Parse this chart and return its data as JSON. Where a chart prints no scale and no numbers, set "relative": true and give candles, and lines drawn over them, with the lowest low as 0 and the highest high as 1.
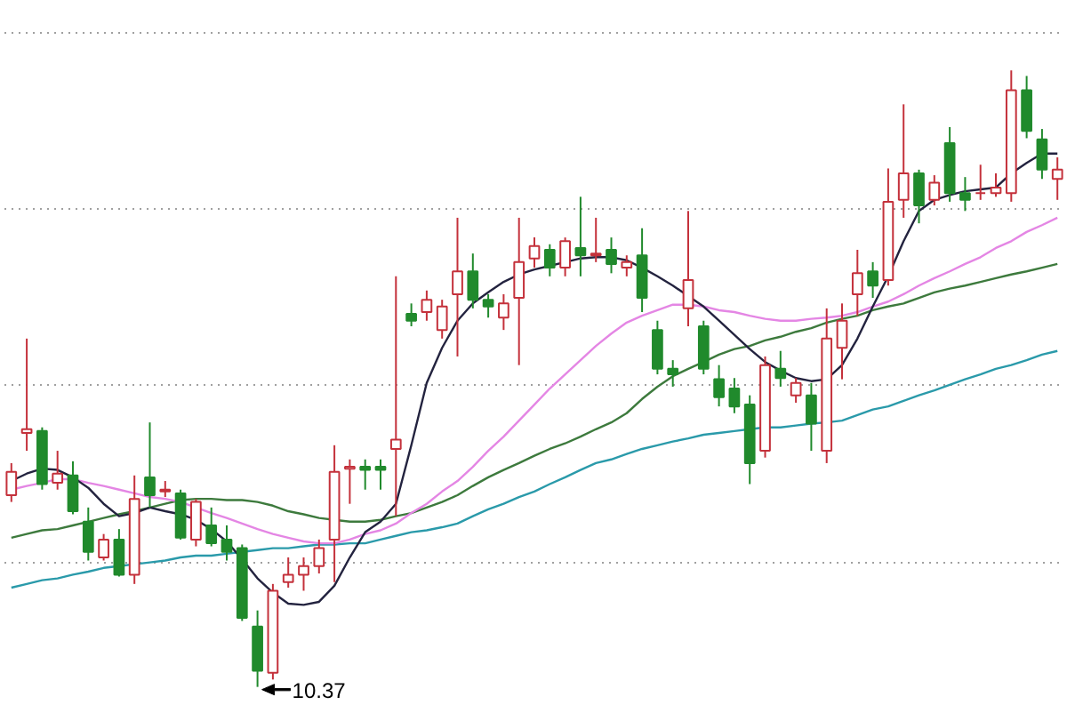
{
  "chart_data": {
    "type": "candlestick",
    "relative": true,
    "categories": [
      null,
      null,
      null,
      null,
      null,
      null,
      null,
      null,
      null,
      null,
      null,
      null,
      null,
      null,
      null,
      null,
      null,
      null,
      null,
      null,
      null,
      null,
      null,
      null,
      null,
      null,
      null,
      null,
      null,
      null,
      null,
      null,
      null,
      null,
      null,
      null,
      null,
      null,
      null,
      null,
      null,
      null,
      null,
      null,
      null,
      null,
      null,
      null,
      null,
      null,
      null,
      null,
      null,
      null,
      null,
      null,
      null,
      null,
      null,
      null,
      null,
      null,
      null,
      null,
      null,
      null,
      null,
      null,
      null
    ],
    "ohlc": [
      [
        0.311,
        0.363,
        0.3,
        0.349
      ],
      [
        0.412,
        0.565,
        0.383,
        0.418
      ],
      [
        0.415,
        0.421,
        0.32,
        0.329
      ],
      [
        0.331,
        0.383,
        0.32,
        0.346
      ],
      [
        0.343,
        0.366,
        0.28,
        0.285
      ],
      [
        0.268,
        0.291,
        0.205,
        0.219
      ],
      [
        0.21,
        0.248,
        0.205,
        0.239
      ],
      [
        0.239,
        0.256,
        0.179,
        0.182
      ],
      [
        0.182,
        0.343,
        0.167,
        0.305
      ],
      [
        0.34,
        0.429,
        0.291,
        0.311
      ],
      [
        0.317,
        0.334,
        0.308,
        0.32
      ],
      [
        0.314,
        0.32,
        0.239,
        0.242
      ],
      [
        0.239,
        0.305,
        0.228,
        0.3
      ],
      [
        0.262,
        0.291,
        0.228,
        0.233
      ],
      [
        0.239,
        0.262,
        0.205,
        0.219
      ],
      [
        0.225,
        0.231,
        0.107,
        0.112
      ],
      [
        0.098,
        0.124,
        0,
        0.026
      ],
      [
        0.023,
        0.167,
        0.012,
        0.156
      ],
      [
        0.17,
        0.21,
        0.161,
        0.182
      ],
      [
        0.182,
        0.21,
        0.156,
        0.196
      ],
      [
        0.196,
        0.239,
        0.184,
        0.225
      ],
      [
        0.239,
        0.392,
        0.17,
        0.349
      ],
      [
        0.354,
        0.369,
        0.297,
        0.357
      ],
      [
        0.357,
        0.369,
        0.32,
        0.352
      ],
      [
        0.357,
        0.369,
        0.32,
        0.352
      ],
      [
        0.386,
        0.666,
        0.277,
        0.401
      ],
      [
        0.605,
        0.622,
        0.585,
        0.594
      ],
      [
        0.608,
        0.643,
        0.594,
        0.628
      ],
      [
        0.579,
        0.628,
        0.565,
        0.617
      ],
      [
        0.637,
        0.761,
        0.536,
        0.674
      ],
      [
        0.674,
        0.703,
        0.614,
        0.628
      ],
      [
        0.628,
        0.637,
        0.599,
        0.617
      ],
      [
        0.599,
        0.637,
        0.579,
        0.622
      ],
      [
        0.631,
        0.761,
        0.522,
        0.689
      ],
      [
        0.695,
        0.729,
        0.68,
        0.715
      ],
      [
        0.709,
        0.718,
        0.666,
        0.68
      ],
      [
        0.68,
        0.729,
        0.666,
        0.723
      ],
      [
        0.712,
        0.795,
        0.666,
        0.7
      ],
      [
        0.7,
        0.761,
        0.689,
        0.703
      ],
      [
        0.709,
        0.729,
        0.671,
        0.686
      ],
      [
        0.68,
        0.7,
        0.666,
        0.689
      ],
      [
        0.7,
        0.744,
        0.608,
        0.631
      ],
      [
        0.579,
        0.594,
        0.507,
        0.516
      ],
      [
        0.516,
        0.53,
        0.487,
        0.507
      ],
      [
        0.614,
        0.772,
        0.585,
        0.66
      ],
      [
        0.585,
        0.594,
        0.507,
        0.516
      ],
      [
        0.499,
        0.522,
        0.455,
        0.47
      ],
      [
        0.484,
        0.501,
        0.444,
        0.455
      ],
      [
        0.458,
        0.473,
        0.329,
        0.363
      ],
      [
        0.383,
        0.536,
        0.372,
        0.522
      ],
      [
        0.516,
        0.545,
        0.487,
        0.501
      ],
      [
        0.473,
        0.501,
        0.461,
        0.493
      ],
      [
        0.473,
        0.493,
        0.383,
        0.427
      ],
      [
        0.383,
        0.614,
        0.363,
        0.565
      ],
      [
        0.55,
        0.622,
        0.499,
        0.594
      ],
      [
        0.637,
        0.709,
        0.602,
        0.671
      ],
      [
        0.674,
        0.689,
        0.631,
        0.651
      ],
      [
        0.66,
        0.841,
        0.651,
        0.787
      ],
      [
        0.79,
        0.945,
        0.761,
        0.833
      ],
      [
        0.833,
        0.839,
        0.752,
        0.781
      ],
      [
        0.79,
        0.83,
        0.781,
        0.818
      ],
      [
        0.882,
        0.908,
        0.787,
        0.801
      ],
      [
        0.801,
        0.827,
        0.772,
        0.79
      ],
      [
        0.801,
        0.847,
        0.79,
        0.801
      ],
      [
        0.801,
        0.833,
        0.795,
        0.81
      ],
      [
        0.801,
        1,
        0.787,
        0.968
      ],
      [
        0.968,
        0.991,
        0.89,
        0.902
      ],
      [
        0.888,
        0.905,
        0.824,
        0.839
      ],
      [
        0.824,
        0.859,
        0.79,
        0.839
      ]
    ],
    "colors": [
      "#c4313b",
      "#c4313b",
      "#208a2c",
      "#c4313b",
      "#208a2c",
      "#208a2c",
      "#c4313b",
      "#208a2c",
      "#c4313b",
      "#208a2c",
      "#c4313b",
      "#208a2c",
      "#c4313b",
      "#208a2c",
      "#208a2c",
      "#208a2c",
      "#208a2c",
      "#c4313b",
      "#c4313b",
      "#c4313b",
      "#c4313b",
      "#c4313b",
      "#c4313b",
      "#208a2c",
      "#208a2c",
      "#c4313b",
      "#208a2c",
      "#c4313b",
      "#c4313b",
      "#c4313b",
      "#208a2c",
      "#208a2c",
      "#c4313b",
      "#c4313b",
      "#c4313b",
      "#208a2c",
      "#c4313b",
      "#208a2c",
      "#c4313b",
      "#208a2c",
      "#c4313b",
      "#208a2c",
      "#208a2c",
      "#208a2c",
      "#c4313b",
      "#208a2c",
      "#208a2c",
      "#208a2c",
      "#208a2c",
      "#c4313b",
      "#208a2c",
      "#c4313b",
      "#208a2c",
      "#c4313b",
      "#c4313b",
      "#c4313b",
      "#208a2c",
      "#c4313b",
      "#c4313b",
      "#208a2c",
      "#c4313b",
      "#208a2c",
      "#208a2c",
      "#c4313b",
      "#c4313b",
      "#c4313b",
      "#208a2c",
      "#208a2c",
      "#c4313b"
    ],
    "series": [
      {
        "type": "line",
        "color": "#2a9aaa",
        "values": [
          0.161,
          0.167,
          0.173,
          0.176,
          0.182,
          0.187,
          0.193,
          0.196,
          0.199,
          0.202,
          0.205,
          0.21,
          0.213,
          0.213,
          0.216,
          0.219,
          0.222,
          0.225,
          0.225,
          0.228,
          0.231,
          0.231,
          0.233,
          0.233,
          0.239,
          0.245,
          0.251,
          0.254,
          0.259,
          0.265,
          0.277,
          0.288,
          0.297,
          0.308,
          0.317,
          0.329,
          0.34,
          0.352,
          0.363,
          0.369,
          0.378,
          0.386,
          0.392,
          0.398,
          0.403,
          0.409,
          0.412,
          0.415,
          0.418,
          0.421,
          0.421,
          0.424,
          0.427,
          0.429,
          0.432,
          0.441,
          0.45,
          0.455,
          0.464,
          0.473,
          0.481,
          0.49,
          0.499,
          0.507,
          0.516,
          0.522,
          0.53,
          0.539,
          0.545
        ]
      },
      {
        "type": "line",
        "color": "#3d7a3d",
        "values": [
          0.242,
          0.248,
          0.254,
          0.256,
          0.262,
          0.268,
          0.274,
          0.28,
          0.285,
          0.291,
          0.297,
          0.303,
          0.305,
          0.305,
          0.303,
          0.303,
          0.3,
          0.294,
          0.285,
          0.28,
          0.274,
          0.271,
          0.268,
          0.268,
          0.271,
          0.277,
          0.282,
          0.291,
          0.3,
          0.311,
          0.326,
          0.34,
          0.352,
          0.363,
          0.375,
          0.386,
          0.395,
          0.406,
          0.418,
          0.429,
          0.444,
          0.467,
          0.487,
          0.504,
          0.516,
          0.527,
          0.539,
          0.548,
          0.553,
          0.562,
          0.568,
          0.576,
          0.582,
          0.591,
          0.597,
          0.602,
          0.611,
          0.617,
          0.622,
          0.631,
          0.64,
          0.646,
          0.651,
          0.657,
          0.663,
          0.669,
          0.674,
          0.68,
          0.686
        ]
      },
      {
        "type": "line",
        "color": "#e486e4",
        "values": [
          0.32,
          0.326,
          0.331,
          0.337,
          0.337,
          0.331,
          0.326,
          0.32,
          0.314,
          0.308,
          0.305,
          0.3,
          0.291,
          0.282,
          0.274,
          0.265,
          0.256,
          0.248,
          0.242,
          0.236,
          0.233,
          0.233,
          0.239,
          0.248,
          0.254,
          0.265,
          0.282,
          0.297,
          0.317,
          0.334,
          0.357,
          0.383,
          0.406,
          0.432,
          0.458,
          0.484,
          0.507,
          0.53,
          0.553,
          0.573,
          0.591,
          0.602,
          0.611,
          0.62,
          0.62,
          0.617,
          0.611,
          0.608,
          0.602,
          0.597,
          0.594,
          0.594,
          0.597,
          0.599,
          0.602,
          0.608,
          0.617,
          0.625,
          0.637,
          0.651,
          0.663,
          0.674,
          0.686,
          0.697,
          0.712,
          0.723,
          0.738,
          0.749,
          0.761
        ]
      },
      {
        "type": "line",
        "color": "#23233f",
        "values": [
          0.334,
          0.346,
          0.354,
          0.352,
          0.34,
          0.323,
          0.297,
          0.277,
          0.282,
          0.291,
          0.285,
          0.28,
          0.271,
          0.256,
          0.236,
          0.207,
          0.176,
          0.153,
          0.135,
          0.133,
          0.138,
          0.164,
          0.21,
          0.251,
          0.268,
          0.297,
          0.392,
          0.493,
          0.55,
          0.594,
          0.622,
          0.64,
          0.657,
          0.669,
          0.677,
          0.683,
          0.689,
          0.695,
          0.697,
          0.697,
          0.692,
          0.68,
          0.666,
          0.651,
          0.634,
          0.617,
          0.594,
          0.571,
          0.548,
          0.527,
          0.513,
          0.501,
          0.496,
          0.499,
          0.522,
          0.565,
          0.617,
          0.666,
          0.723,
          0.772,
          0.79,
          0.798,
          0.804,
          0.807,
          0.81,
          0.833,
          0.85,
          0.865,
          0.865
        ]
      }
    ],
    "grid": "y",
    "annotations": [
      "10.37"
    ]
  }
}
